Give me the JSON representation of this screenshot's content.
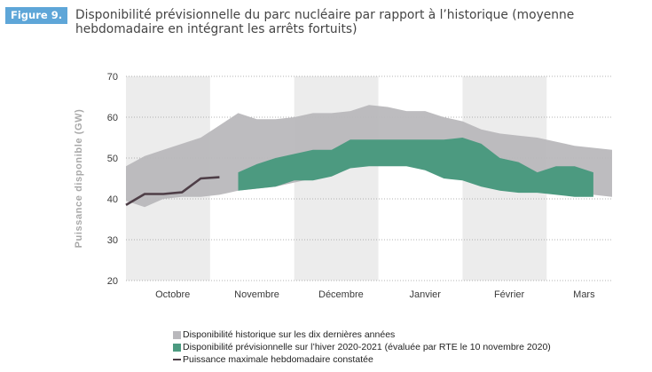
{
  "figure_label": "Figure 9.",
  "title": "Disponibilité prévisionnelle du parc nucléaire par rapport à l’historique (moyenne hebdomadaire en intégrant les arrêts fortuits)",
  "colors": {
    "historique": "#b9b8bc",
    "previsionnelle": "#4c9a80",
    "puissance": "#4e3e47",
    "band": "#ececec",
    "badge": "#5ea6d8"
  },
  "chart_data": {
    "type": "area",
    "ylabel": "Puissance disponible (GW)",
    "xlabel": "",
    "ylim": [
      20,
      70
    ],
    "yticks": [
      20,
      30,
      40,
      50,
      60,
      70
    ],
    "x_unit": "semaine",
    "xlim": [
      0,
      26
    ],
    "month_labels": [
      {
        "label": "Octobre",
        "x": 2.5
      },
      {
        "label": "Novembre",
        "x": 7
      },
      {
        "label": "Décembre",
        "x": 11.5
      },
      {
        "label": "Janvier",
        "x": 16
      },
      {
        "label": "Février",
        "x": 20.5
      },
      {
        "label": "Mars",
        "x": 24.5
      }
    ],
    "shaded_months": [
      [
        0,
        4.5
      ],
      [
        9,
        13.5
      ],
      [
        18,
        22.5
      ]
    ],
    "grid": true,
    "series": [
      {
        "name": "Disponibilité historique sur les dix dernières années",
        "kind": "band",
        "x": [
          0,
          1,
          2,
          3,
          4,
          5,
          6,
          7,
          8,
          9,
          10,
          11,
          12,
          13,
          14,
          15,
          16,
          17,
          18,
          19,
          20,
          21,
          22,
          23,
          24,
          25,
          26
        ],
        "high": [
          48,
          50.5,
          52,
          53.5,
          55,
          58,
          61,
          59.5,
          59.5,
          60,
          61,
          61,
          61.5,
          63,
          62.5,
          61.5,
          61.5,
          60,
          59,
          57,
          56,
          55.5,
          55,
          54,
          53,
          52.5,
          52
        ],
        "low": [
          39.5,
          38,
          40,
          40.5,
          40.5,
          41,
          42,
          42.5,
          43,
          44,
          45,
          47,
          48,
          50.5,
          51,
          51,
          50,
          48.5,
          46,
          45,
          47,
          46.5,
          45,
          43,
          42,
          41,
          40.5
        ]
      },
      {
        "name": "Disponibilité prévisionnelle sur l’hiver 2020-2021 (évaluée par RTE le 10 novembre 2020)",
        "kind": "band",
        "x": [
          6,
          7,
          8,
          9,
          10,
          11,
          12,
          13,
          14,
          15,
          16,
          17,
          18,
          19,
          20,
          21,
          22,
          23,
          24,
          25
        ],
        "high": [
          46.5,
          48.5,
          50,
          51,
          52,
          52,
          54.5,
          54.5,
          54.5,
          54.5,
          54.5,
          54.5,
          55,
          53.5,
          50,
          49,
          46.5,
          48,
          48,
          46.5
        ],
        "low": [
          42,
          42.5,
          43,
          44.5,
          44.5,
          45.5,
          47.5,
          48,
          48,
          48,
          47,
          45,
          44.5,
          43,
          42,
          41.5,
          41.5,
          41,
          40.5,
          40.5
        ]
      },
      {
        "name": "Puissance maximale hebdomadaire constatée",
        "kind": "line",
        "x": [
          0,
          1,
          2,
          3,
          4,
          5
        ],
        "y": [
          38.5,
          41.2,
          41.2,
          41.6,
          45,
          45.3
        ]
      }
    ],
    "legend": [
      "Disponibilité historique sur les dix dernières années",
      "Disponibilité prévisionnelle sur l’hiver 2020-2021 (évaluée par RTE le 10 novembre 2020)",
      "Puissance maximale hebdomadaire constatée"
    ],
    "legend_position": "bottom"
  }
}
